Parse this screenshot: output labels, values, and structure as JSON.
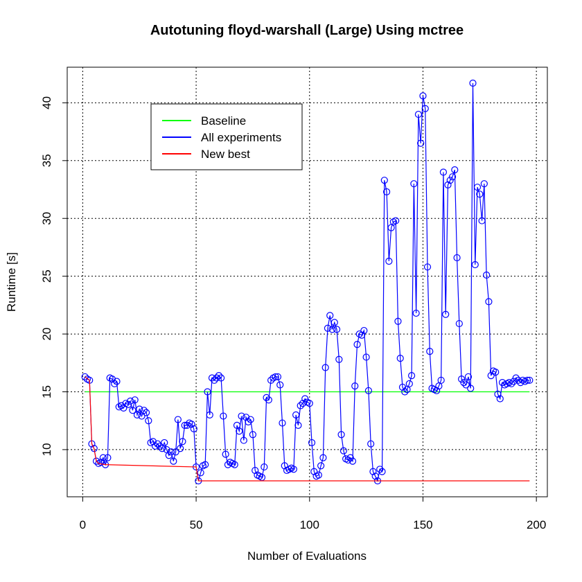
{
  "chart_data": {
    "type": "line",
    "title": "Autotuning floyd-warshall (Large) Using mctree",
    "x_label": "Number of Evaluations",
    "y_label": "Runtime [s]",
    "xlim": [
      -6.84,
      204.84
    ],
    "ylim": [
      5.92,
      43.08
    ],
    "xticks": [
      0,
      50,
      100,
      150,
      200
    ],
    "yticks": [
      10,
      15,
      20,
      25,
      30,
      35,
      40
    ],
    "grid": true,
    "legend_position": "top-left",
    "series": [
      {
        "name": "Baseline",
        "color": "#00ff00",
        "markers": false,
        "x": [
          1,
          197
        ],
        "values": [
          15.0,
          15.0
        ]
      },
      {
        "name": "All experiments",
        "color": "#0000ff",
        "markers": true,
        "x": [
          1,
          2,
          3,
          4,
          5,
          6,
          7,
          8,
          9,
          10,
          11,
          12,
          13,
          14,
          15,
          16,
          17,
          18,
          19,
          20,
          21,
          22,
          23,
          24,
          25,
          26,
          27,
          28,
          29,
          30,
          31,
          32,
          33,
          34,
          35,
          36,
          37,
          38,
          39,
          40,
          41,
          42,
          43,
          44,
          45,
          46,
          47,
          48,
          49,
          50,
          51,
          52,
          53,
          54,
          55,
          56,
          57,
          58,
          59,
          60,
          61,
          62,
          63,
          64,
          65,
          66,
          67,
          68,
          69,
          70,
          71,
          72,
          73,
          74,
          75,
          76,
          77,
          78,
          79,
          80,
          81,
          82,
          83,
          84,
          85,
          86,
          87,
          88,
          89,
          90,
          91,
          92,
          93,
          94,
          95,
          96,
          97,
          98,
          99,
          100,
          101,
          102,
          103,
          104,
          105,
          106,
          107,
          108,
          109,
          110,
          111,
          112,
          113,
          114,
          115,
          116,
          117,
          118,
          119,
          120,
          121,
          122,
          123,
          124,
          125,
          126,
          127,
          128,
          129,
          130,
          131,
          132,
          133,
          134,
          135,
          136,
          137,
          138,
          139,
          140,
          141,
          142,
          143,
          144,
          145,
          146,
          147,
          148,
          149,
          150,
          151,
          152,
          153,
          154,
          155,
          156,
          157,
          158,
          159,
          160,
          161,
          162,
          163,
          164,
          165,
          166,
          167,
          168,
          169,
          170,
          171,
          172,
          173,
          174,
          175,
          176,
          177,
          178,
          179,
          180,
          181,
          182,
          183,
          184,
          185,
          186,
          187,
          188,
          189,
          190,
          191,
          192,
          193,
          194,
          195,
          196,
          197
        ],
        "values": [
          16.3,
          16.1,
          16.0,
          10.5,
          10.1,
          9.0,
          8.8,
          8.9,
          9.3,
          8.7,
          9.3,
          16.2,
          16.1,
          15.7,
          15.9,
          13.7,
          13.8,
          13.6,
          14.0,
          13.9,
          14.2,
          13.4,
          14.3,
          13.0,
          13.5,
          12.9,
          13.4,
          13.2,
          12.5,
          10.6,
          10.7,
          10.3,
          10.5,
          10.3,
          10.1,
          10.6,
          10.0,
          9.5,
          9.8,
          9.0,
          9.8,
          12.6,
          10.1,
          10.7,
          12.1,
          12.1,
          12.3,
          12.2,
          11.8,
          8.5,
          7.3,
          8.0,
          8.6,
          8.7,
          15.0,
          13.0,
          16.2,
          16.0,
          16.2,
          16.4,
          16.2,
          12.9,
          9.6,
          8.7,
          8.9,
          8.8,
          8.7,
          12.1,
          11.6,
          12.9,
          10.8,
          12.8,
          12.4,
          12.6,
          11.3,
          8.2,
          7.8,
          7.7,
          7.6,
          8.5,
          14.5,
          14.3,
          16.0,
          16.2,
          16.3,
          16.3,
          15.6,
          12.3,
          8.6,
          8.2,
          8.3,
          8.4,
          8.3,
          13.0,
          12.1,
          13.8,
          14.0,
          14.4,
          14.1,
          14.0,
          10.6,
          8.1,
          7.7,
          7.8,
          8.6,
          9.3,
          17.1,
          20.5,
          21.6,
          20.4,
          21.0,
          20.4,
          17.8,
          11.3,
          9.9,
          9.2,
          9.1,
          9.3,
          9.0,
          15.5,
          19.1,
          20.0,
          19.9,
          20.3,
          18.0,
          15.1,
          10.5,
          8.1,
          7.7,
          7.3,
          8.3,
          8.1,
          33.3,
          32.3,
          26.3,
          29.2,
          29.7,
          29.8,
          21.1,
          17.9,
          15.4,
          15.0,
          15.2,
          15.7,
          16.4,
          33.0,
          21.8,
          39.0,
          36.5,
          40.6,
          39.5,
          25.8,
          18.5,
          15.3,
          15.2,
          15.1,
          15.5,
          16.0,
          34.0,
          21.7,
          32.9,
          33.3,
          33.6,
          34.2,
          26.6,
          20.9,
          16.1,
          15.8,
          15.6,
          16.3,
          15.3,
          41.7,
          26.0,
          32.7,
          32.1,
          29.8,
          33.0,
          25.1,
          22.8,
          16.4,
          16.8,
          16.7,
          14.8,
          14.4,
          15.8,
          15.6,
          15.7,
          15.8,
          15.7,
          15.9,
          16.2,
          16.0,
          15.8,
          16.0,
          15.9,
          16.0,
          16.0
        ]
      },
      {
        "name": "New best",
        "color": "#ff0000",
        "markers": false,
        "x": [
          1,
          3,
          4,
          5,
          6,
          7,
          10,
          50,
          51,
          197
        ],
        "values": [
          16.3,
          16.0,
          10.5,
          10.1,
          9.0,
          8.8,
          8.7,
          8.5,
          7.3,
          7.3
        ]
      }
    ]
  }
}
